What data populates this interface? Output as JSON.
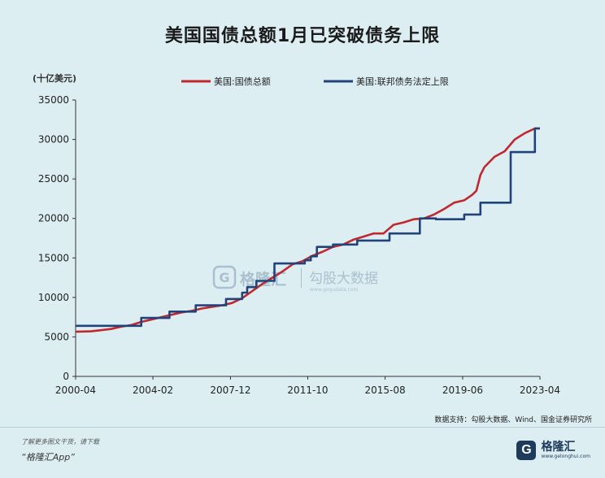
{
  "title": "美国国债总额1月已突破债务上限",
  "watermark": {
    "main": "格隆汇",
    "sub": "勾股大数据",
    "url": "www.gogudata.com",
    "logo": "G"
  },
  "source": "数据支持：勾股大数据、Wind、国金证券研究所",
  "footer": {
    "note": "了解更多图文干货，请下载",
    "app": "“格隆汇App”"
  },
  "brand": {
    "name": "格隆汇",
    "url": "www.gelonghui.com",
    "logo": "G"
  },
  "colors": {
    "debt": "#c0282d",
    "ceiling": "#21437a",
    "axis": "#333333"
  },
  "chart_data": {
    "type": "line",
    "ylabel": "(十亿美元)",
    "ylim": [
      0,
      35000
    ],
    "yticks": [
      0,
      5000,
      10000,
      15000,
      20000,
      25000,
      30000,
      35000
    ],
    "xlim": [
      2000.25,
      2023.25
    ],
    "xticks": [
      {
        "label": "2000-04",
        "value": 2000.25
      },
      {
        "label": "2004-02",
        "value": 2004.08
      },
      {
        "label": "2007-12",
        "value": 2007.92
      },
      {
        "label": "2011-10",
        "value": 2011.75
      },
      {
        "label": "2015-08",
        "value": 2015.58
      },
      {
        "label": "2019-06",
        "value": 2019.42
      },
      {
        "label": "2023-04",
        "value": 2023.25
      }
    ],
    "grid": false,
    "legend_position": "top",
    "series": [
      {
        "name": "美国:国债总额",
        "color": "#c0282d",
        "step": false,
        "x": [
          2000.25,
          2001.0,
          2001.5,
          2002.0,
          2002.5,
          2003.0,
          2003.5,
          2004.0,
          2004.5,
          2005.0,
          2005.5,
          2006.0,
          2006.5,
          2007.0,
          2007.5,
          2008.0,
          2008.5,
          2009.0,
          2009.5,
          2010.0,
          2010.5,
          2011.0,
          2011.5,
          2012.0,
          2012.5,
          2013.0,
          2013.5,
          2014.0,
          2014.5,
          2015.0,
          2015.5,
          2016.0,
          2016.5,
          2017.0,
          2017.5,
          2018.0,
          2018.5,
          2019.0,
          2019.5,
          2019.9,
          2020.1,
          2020.3,
          2020.5,
          2021.0,
          2021.5,
          2022.0,
          2022.5,
          2023.0,
          2023.25
        ],
        "values": [
          5650,
          5700,
          5850,
          6000,
          6300,
          6500,
          6900,
          7200,
          7500,
          7800,
          8100,
          8300,
          8600,
          8800,
          9000,
          9300,
          9900,
          10800,
          11700,
          12500,
          13300,
          14200,
          14600,
          15300,
          15800,
          16400,
          16700,
          17300,
          17700,
          18100,
          18100,
          19200,
          19500,
          19900,
          20000,
          20500,
          21200,
          22000,
          22300,
          23000,
          23500,
          25500,
          26500,
          27800,
          28500,
          30000,
          30800,
          31400,
          31400
        ]
      },
      {
        "name": "美国:联邦债务法定上限",
        "color": "#21437a",
        "step": true,
        "x": [
          2000.25,
          2003.5,
          2004.9,
          2006.2,
          2007.7,
          2008.5,
          2008.75,
          2009.2,
          2010.1,
          2011.6,
          2011.9,
          2012.2,
          2013.0,
          2014.2,
          2015.8,
          2017.3,
          2018.1,
          2019.5,
          2020.3,
          2021.8,
          2023.0,
          2023.25
        ],
        "values": [
          6400,
          7400,
          8200,
          9000,
          9800,
          10600,
          11300,
          12100,
          14300,
          14700,
          15200,
          16400,
          16700,
          17200,
          18100,
          20000,
          19900,
          20500,
          22000,
          28400,
          31400,
          31400
        ]
      }
    ]
  }
}
